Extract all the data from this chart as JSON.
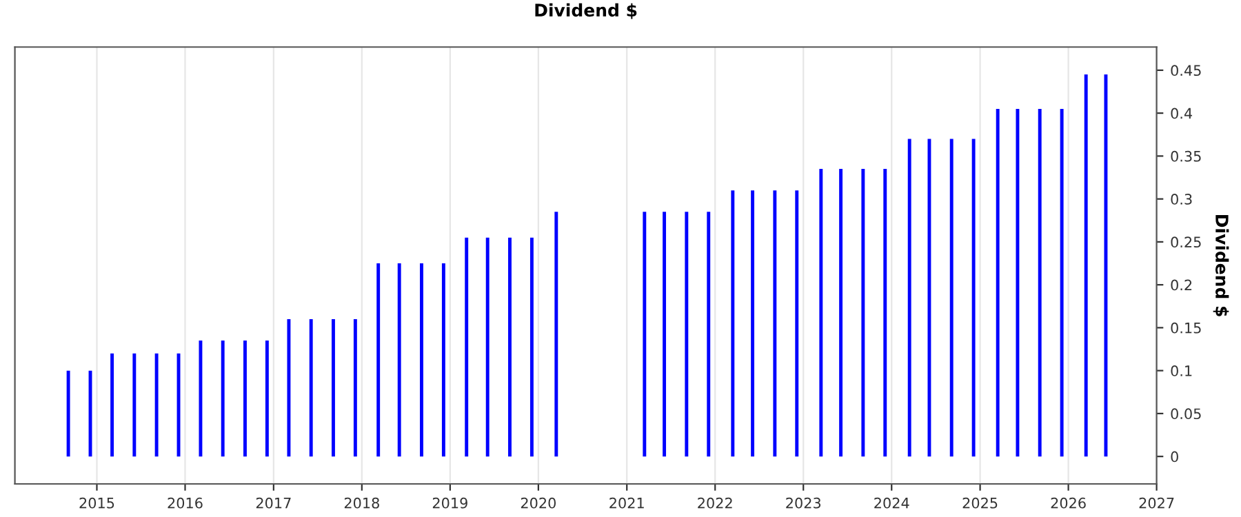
{
  "chart_data": {
    "type": "bar",
    "title": "Dividend $",
    "ylabel": "Dividend $",
    "x": [
      "2014-09-05",
      "2014-12-05",
      "2015-03-05",
      "2015-06-05",
      "2015-09-05",
      "2015-12-05",
      "2016-03-05",
      "2016-06-05",
      "2016-09-05",
      "2016-12-05",
      "2017-03-05",
      "2017-06-05",
      "2017-09-05",
      "2017-12-05",
      "2018-03-10",
      "2018-06-05",
      "2018-09-05",
      "2018-12-05",
      "2019-03-10",
      "2019-06-05",
      "2019-09-05",
      "2019-12-05",
      "2020-03-15",
      "2021-03-15",
      "2021-06-05",
      "2021-09-05",
      "2021-12-05",
      "2022-03-15",
      "2022-06-05",
      "2022-09-05",
      "2022-12-05",
      "2023-03-15",
      "2023-06-05",
      "2023-09-05",
      "2023-12-05",
      "2024-03-15",
      "2024-06-05",
      "2024-09-05",
      "2024-12-05",
      "2025-03-15",
      "2025-06-05",
      "2025-09-05",
      "2025-12-05",
      "2026-03-15",
      "2026-06-05"
    ],
    "values": [
      0.1,
      0.1,
      0.12,
      0.12,
      0.12,
      0.12,
      0.135,
      0.135,
      0.135,
      0.135,
      0.16,
      0.16,
      0.16,
      0.16,
      0.225,
      0.225,
      0.225,
      0.225,
      0.255,
      0.255,
      0.255,
      0.255,
      0.285,
      0.285,
      0.285,
      0.285,
      0.285,
      0.31,
      0.31,
      0.31,
      0.31,
      0.335,
      0.335,
      0.335,
      0.335,
      0.37,
      0.37,
      0.37,
      0.37,
      0.405,
      0.405,
      0.405,
      0.405,
      0.445,
      0.445
    ],
    "color": "#0000ff",
    "xlim": [
      "2014-01-27",
      "2027-01-01"
    ],
    "xticks": [
      {
        "value": "2015-01-01",
        "label": "2015"
      },
      {
        "value": "2016-01-01",
        "label": "2016"
      },
      {
        "value": "2017-01-01",
        "label": "2017"
      },
      {
        "value": "2018-01-01",
        "label": "2018"
      },
      {
        "value": "2019-01-01",
        "label": "2019"
      },
      {
        "value": "2020-01-01",
        "label": "2020"
      },
      {
        "value": "2021-01-01",
        "label": "2021"
      },
      {
        "value": "2022-01-01",
        "label": "2022"
      },
      {
        "value": "2023-01-01",
        "label": "2023"
      },
      {
        "value": "2024-01-01",
        "label": "2024"
      },
      {
        "value": "2025-01-01",
        "label": "2025"
      },
      {
        "value": "2026-01-01",
        "label": "2026"
      },
      {
        "value": "2027-01-01",
        "label": "2027"
      }
    ],
    "ylim": [
      -0.032,
      0.477
    ],
    "yticks": [
      0,
      0.05,
      0.1,
      0.15,
      0.2,
      0.25,
      0.3,
      0.35,
      0.4,
      0.45
    ],
    "grid": "x"
  }
}
